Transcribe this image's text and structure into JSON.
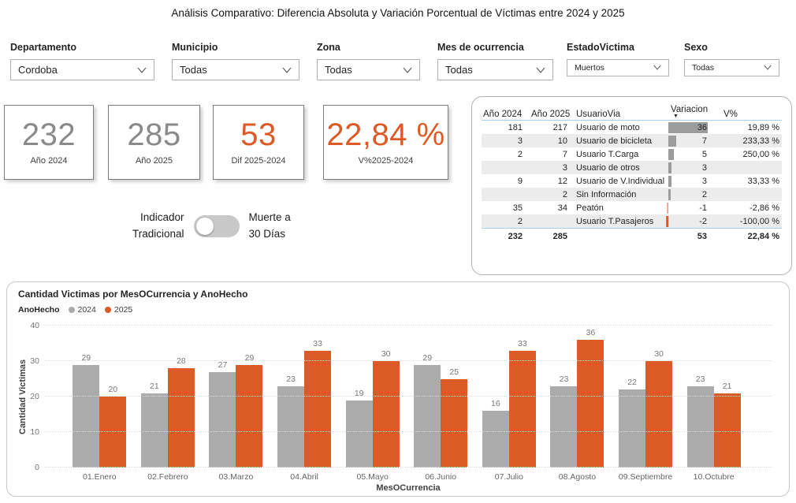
{
  "title": "Análisis Comparativo: Diferencia Absoluta y Variación Porcentual de Víctimas entre 2024 y 2025",
  "filters": [
    {
      "label": "Departamento",
      "value": "Cordoba",
      "size": "large"
    },
    {
      "label": "Municipio",
      "value": "Todas",
      "size": "large"
    },
    {
      "label": "Zona",
      "value": "Todas",
      "size": "large"
    },
    {
      "label": "Mes de ocurrencia",
      "value": "Todas",
      "size": "large"
    },
    {
      "label": "EstadoVictima",
      "value": "Muertos",
      "size": "small"
    },
    {
      "label": "Sexo",
      "value": "Todas",
      "size": "small"
    }
  ],
  "kpis": [
    {
      "value": "232",
      "label": "Año 2024",
      "color": "#8a8a8a"
    },
    {
      "value": "285",
      "label": "Año 2025",
      "color": "#8a8a8a"
    },
    {
      "value": "53",
      "label": "Dif 2025-2024",
      "color": "#dc5a26"
    },
    {
      "value": "22,84 %",
      "label": "V%2025-2024",
      "color": "#dc5a26"
    }
  ],
  "toggle": {
    "left_label": "Indicador\nTradicional",
    "right_label": "Muerte a\n30 Días",
    "state": "off"
  },
  "table": {
    "columns": [
      "Año 2024",
      "Año 2025",
      "UsuarioVia",
      "Variacion",
      "V%"
    ],
    "sort_column": "Variacion",
    "sort_direction": "desc",
    "rows": [
      {
        "y2024": "181",
        "y2025": "217",
        "usuario": "Usuario de moto",
        "variacion": 36,
        "vpct": "19,89 %"
      },
      {
        "y2024": "3",
        "y2025": "10",
        "usuario": "Usuario de bicicleta",
        "variacion": 7,
        "vpct": "233,33 %"
      },
      {
        "y2024": "2",
        "y2025": "7",
        "usuario": "Usuario T.Carga",
        "variacion": 5,
        "vpct": "250,00 %"
      },
      {
        "y2024": "",
        "y2025": "3",
        "usuario": "Usuario de otros",
        "variacion": 3,
        "vpct": ""
      },
      {
        "y2024": "9",
        "y2025": "12",
        "usuario": "Usuario de V.Individual",
        "variacion": 3,
        "vpct": "33,33 %"
      },
      {
        "y2024": "",
        "y2025": "2",
        "usuario": "Sin Información",
        "variacion": 2,
        "vpct": ""
      },
      {
        "y2024": "35",
        "y2025": "34",
        "usuario": "Peatón",
        "variacion": -1,
        "vpct": "-2,86 %"
      },
      {
        "y2024": "2",
        "y2025": "",
        "usuario": "Usuario T.Pasajeros",
        "variacion": -2,
        "vpct": "-100,00 %"
      }
    ],
    "total": {
      "y2024": "232",
      "y2025": "285",
      "usuario": "",
      "variacion": "53",
      "vpct": "22,84 %"
    }
  },
  "chart_data": {
    "type": "bar",
    "title": "Cantidad Victimas por MesOCurrencia y AnoHecho",
    "legend_title": "AnoHecho",
    "categories": [
      "01.Enero",
      "02.Febrero",
      "03.Marzo",
      "04.Abril",
      "05.Mayo",
      "06.Junio",
      "07.Julio",
      "08.Agosto",
      "09.Septiembre",
      "10.Octubre"
    ],
    "series": [
      {
        "name": "2024",
        "color": "#ababab",
        "values": [
          29,
          21,
          27,
          23,
          19,
          29,
          16,
          23,
          22,
          23
        ]
      },
      {
        "name": "2025",
        "color": "#dc5a26",
        "values": [
          20,
          28,
          29,
          33,
          30,
          25,
          33,
          36,
          30,
          21
        ]
      }
    ],
    "xlabel": "MesOCurrencia",
    "ylabel": "Cantidad Victimas",
    "ylim": [
      0,
      40
    ],
    "yticks": [
      0,
      10,
      20,
      30,
      40
    ],
    "grid": "dotted-horizontal",
    "legend_position": "top-left"
  },
  "colors": {
    "accent_orange": "#dc5a26",
    "bar_gray": "#ababab",
    "databar_positive": "#9c9c9c",
    "databar_negative": "#e0551f",
    "header_rule_blue": "#a9cdec",
    "row_alt": "#ececec"
  }
}
